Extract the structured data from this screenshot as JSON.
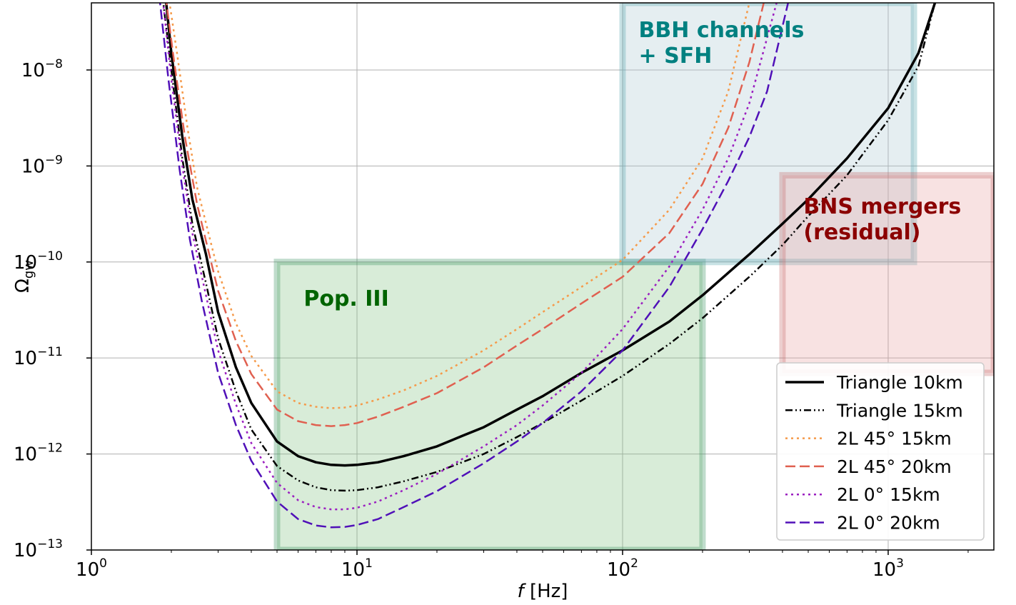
{
  "chart_data": {
    "type": "line",
    "xlabel_italic": "f",
    "xlabel_unit": " [Hz]",
    "ylabel_main": "Ω",
    "ylabel_sub": "gw",
    "xscale": "log",
    "yscale": "log",
    "xlim": [
      1,
      2500
    ],
    "ylim": [
      1e-13,
      5e-08
    ],
    "grid": true,
    "legend_placement": "lower-right",
    "x_ticks": [
      {
        "value": 1,
        "base": "10",
        "exp": "0"
      },
      {
        "value": 10,
        "base": "10",
        "exp": "1"
      },
      {
        "value": 100,
        "base": "10",
        "exp": "2"
      },
      {
        "value": 1000,
        "base": "10",
        "exp": "3"
      }
    ],
    "y_ticks": [
      {
        "value": 1e-13,
        "base": "10",
        "exp": "−13"
      },
      {
        "value": 1e-12,
        "base": "10",
        "exp": "−12"
      },
      {
        "value": 1e-11,
        "base": "10",
        "exp": "−11"
      },
      {
        "value": 1e-10,
        "base": "10",
        "exp": "−10"
      },
      {
        "value": 1e-09,
        "base": "10",
        "exp": "−9"
      },
      {
        "value": 1e-08,
        "base": "10",
        "exp": "−8"
      }
    ],
    "regions": [
      {
        "label_lines": [
          "Pop. III"
        ],
        "x": [
          5,
          200
        ],
        "y": [
          1e-13,
          1e-10
        ],
        "fill": "#7fbf7f",
        "edge": "#2e8b57",
        "text_color": "#006400",
        "label_at": [
          6.3,
          3.5e-11
        ]
      },
      {
        "label_lines": [
          "BBH channels",
          "+ SFH"
        ],
        "x": [
          100,
          1250
        ],
        "y": [
          1e-10,
          5e-08
        ],
        "fill": "#a8c8d0",
        "edge": "#4aa0a8",
        "text_color": "#008080",
        "label_at": [
          115,
          2.2e-08
        ]
      },
      {
        "label_lines": [
          "BNS mergers",
          "(residual)"
        ],
        "x": [
          400,
          2500
        ],
        "y": [
          7e-12,
          8e-10
        ],
        "fill": "#e8a0a0",
        "edge": "#c06060",
        "text_color": "#8b0000",
        "label_at": [
          480,
          3.2e-10
        ]
      }
    ],
    "series": [
      {
        "name": "Triangle 10km",
        "color": "#000000",
        "dash": "solid",
        "width": 3.5,
        "x": [
          1.9,
          2.0,
          2.2,
          2.4,
          2.7,
          3,
          3.5,
          4,
          5,
          6,
          7,
          8,
          9,
          10,
          12,
          15,
          20,
          25,
          30,
          40,
          50,
          70,
          100,
          150,
          200,
          300,
          400,
          500,
          700,
          1000,
          1300,
          1500
        ],
        "y": [
          6e-08,
          1.5e-08,
          2e-09,
          4.5e-10,
          1.2e-10,
          3e-11,
          8e-12,
          3.4e-12,
          1.35e-12,
          9.5e-13,
          8.2e-13,
          7.7e-13,
          7.6e-13,
          7.7e-13,
          8.2e-13,
          9.5e-13,
          1.2e-12,
          1.55e-12,
          1.9e-12,
          2.9e-12,
          4e-12,
          7e-12,
          1.2e-11,
          2.4e-11,
          4.5e-11,
          1.2e-10,
          2.5e-10,
          4.5e-10,
          1.2e-09,
          4e-09,
          1.5e-08,
          5e-08
        ]
      },
      {
        "name": "Triangle 15km",
        "color": "#000000",
        "dash": "dashdotdot",
        "width": 2.5,
        "x": [
          1.85,
          2.0,
          2.2,
          2.4,
          2.7,
          3,
          3.5,
          4,
          5,
          6,
          7,
          8,
          9,
          10,
          12,
          15,
          20,
          30,
          40,
          50,
          70,
          100,
          150,
          200,
          300,
          400,
          500,
          700,
          1000,
          1300,
          1500
        ],
        "y": [
          6e-08,
          1e-08,
          1.2e-09,
          2.5e-10,
          6e-11,
          1.6e-11,
          4.5e-12,
          1.8e-12,
          7.5e-13,
          5.3e-13,
          4.5e-13,
          4.2e-13,
          4.15e-13,
          4.2e-13,
          4.5e-13,
          5.2e-13,
          6.5e-13,
          1e-12,
          1.5e-12,
          2.1e-12,
          3.6e-12,
          6.5e-12,
          1.4e-11,
          2.6e-11,
          7e-11,
          1.5e-10,
          3e-10,
          8e-10,
          3e-09,
          1.1e-08,
          5e-08
        ]
      },
      {
        "name": "2L 45° 15km",
        "color": "#f59a4a",
        "dash": "dotted",
        "width": 2.5,
        "x": [
          1.95,
          2.1,
          2.3,
          2.5,
          2.8,
          3,
          3.5,
          4,
          5,
          6,
          7,
          8,
          9,
          10,
          12,
          15,
          20,
          30,
          40,
          50,
          70,
          100,
          150,
          200,
          250,
          300
        ],
        "y": [
          6e-08,
          1.5e-08,
          2.5e-09,
          6e-10,
          1.7e-10,
          8e-11,
          2.3e-11,
          1.05e-11,
          4.5e-12,
          3.4e-12,
          3.1e-12,
          3e-12,
          3.05e-12,
          3.2e-12,
          3.7e-12,
          4.6e-12,
          6.5e-12,
          1.2e-11,
          2e-11,
          3e-11,
          5.5e-11,
          1.05e-10,
          3.5e-10,
          1.2e-09,
          6e-09,
          5e-08
        ]
      },
      {
        "name": "2L 45° 20km",
        "color": "#e06050",
        "dash": "dashed",
        "width": 2.5,
        "x": [
          1.9,
          2.05,
          2.25,
          2.5,
          2.8,
          3,
          3.5,
          4,
          5,
          6,
          7,
          8,
          9,
          10,
          12,
          15,
          20,
          30,
          40,
          50,
          70,
          100,
          150,
          200,
          250,
          300,
          340
        ],
        "y": [
          6e-08,
          1.2e-08,
          2e-09,
          4e-10,
          1.1e-10,
          5e-11,
          1.5e-11,
          6.8e-12,
          2.9e-12,
          2.2e-12,
          2e-12,
          1.95e-12,
          2e-12,
          2.1e-12,
          2.45e-12,
          3.1e-12,
          4.3e-12,
          8e-12,
          1.35e-11,
          2e-11,
          3.7e-11,
          7e-11,
          2e-10,
          6.5e-10,
          2.5e-09,
          1.2e-08,
          5e-08
        ]
      },
      {
        "name": "2L 0° 15km",
        "color": "#9b1fc0",
        "dash": "dotted",
        "width": 2.5,
        "x": [
          1.85,
          2.0,
          2.2,
          2.4,
          2.7,
          3,
          3.5,
          4,
          5,
          6,
          7,
          8,
          9,
          10,
          12,
          15,
          20,
          30,
          40,
          50,
          70,
          100,
          150,
          200,
          250,
          300,
          380
        ],
        "y": [
          6e-08,
          8e-09,
          1e-09,
          2e-10,
          4.5e-11,
          1.2e-11,
          3.3e-12,
          1.3e-12,
          5e-13,
          3.3e-13,
          2.8e-13,
          2.65e-13,
          2.65e-13,
          2.75e-13,
          3.2e-13,
          4.2e-13,
          6.2e-13,
          1.2e-12,
          2e-12,
          3.2e-12,
          7e-12,
          2e-11,
          9e-11,
          3.5e-10,
          1.2e-09,
          4.5e-09,
          5e-08
        ]
      },
      {
        "name": "2L 0° 20km",
        "color": "#5010b8",
        "dash": "dashed",
        "width": 2.5,
        "x": [
          1.8,
          1.95,
          2.15,
          2.35,
          2.6,
          3,
          3.5,
          4,
          5,
          6,
          7,
          8,
          9,
          10,
          12,
          15,
          20,
          30,
          40,
          50,
          70,
          100,
          150,
          200,
          250,
          300,
          350,
          420
        ],
        "y": [
          6e-08,
          8e-09,
          9e-10,
          1.7e-10,
          4e-11,
          7e-12,
          2e-12,
          8.5e-13,
          3.2e-13,
          2.1e-13,
          1.8e-13,
          1.72e-13,
          1.74e-13,
          1.82e-13,
          2.1e-13,
          2.8e-13,
          4.1e-13,
          8e-13,
          1.35e-12,
          2.1e-12,
          4.5e-12,
          1.2e-11,
          5.5e-11,
          2.2e-10,
          7e-10,
          2e-09,
          6e-09,
          5e-08
        ]
      }
    ]
  }
}
